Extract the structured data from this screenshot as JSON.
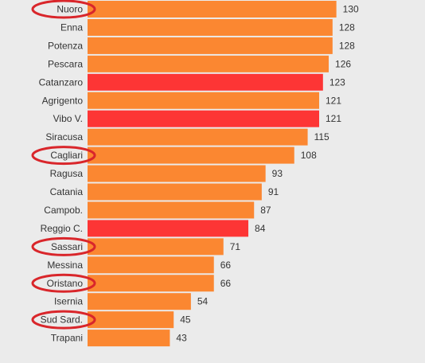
{
  "chart_data": {
    "type": "bar",
    "orientation": "horizontal",
    "title": "",
    "xlabel": "",
    "ylabel": "",
    "xlim": [
      0,
      130
    ],
    "grid": false,
    "legend": "none",
    "colors": {
      "normal": "#fb8731",
      "highlight": "#fd3535",
      "circle": "#d9262b",
      "background": "#ebebeb"
    },
    "categories": [
      "Nuoro",
      "Enna",
      "Potenza",
      "Pescara",
      "Catanzaro",
      "Agrigento",
      "Vibo V.",
      "Siracusa",
      "Cagliari",
      "Ragusa",
      "Catania",
      "Campob.",
      "Reggio C.",
      "Sassari",
      "Messina",
      "Oristano",
      "Isernia",
      "Sud Sard.",
      "Trapani"
    ],
    "values": [
      130,
      128,
      128,
      126,
      123,
      121,
      121,
      115,
      108,
      93,
      91,
      87,
      84,
      71,
      66,
      66,
      54,
      45,
      43
    ],
    "highlighted_bars": [
      "Catanzaro",
      "Vibo V.",
      "Reggio C."
    ],
    "circled_labels": [
      "Nuoro",
      "Cagliari",
      "Sassari",
      "Oristano",
      "Sud Sard."
    ]
  }
}
